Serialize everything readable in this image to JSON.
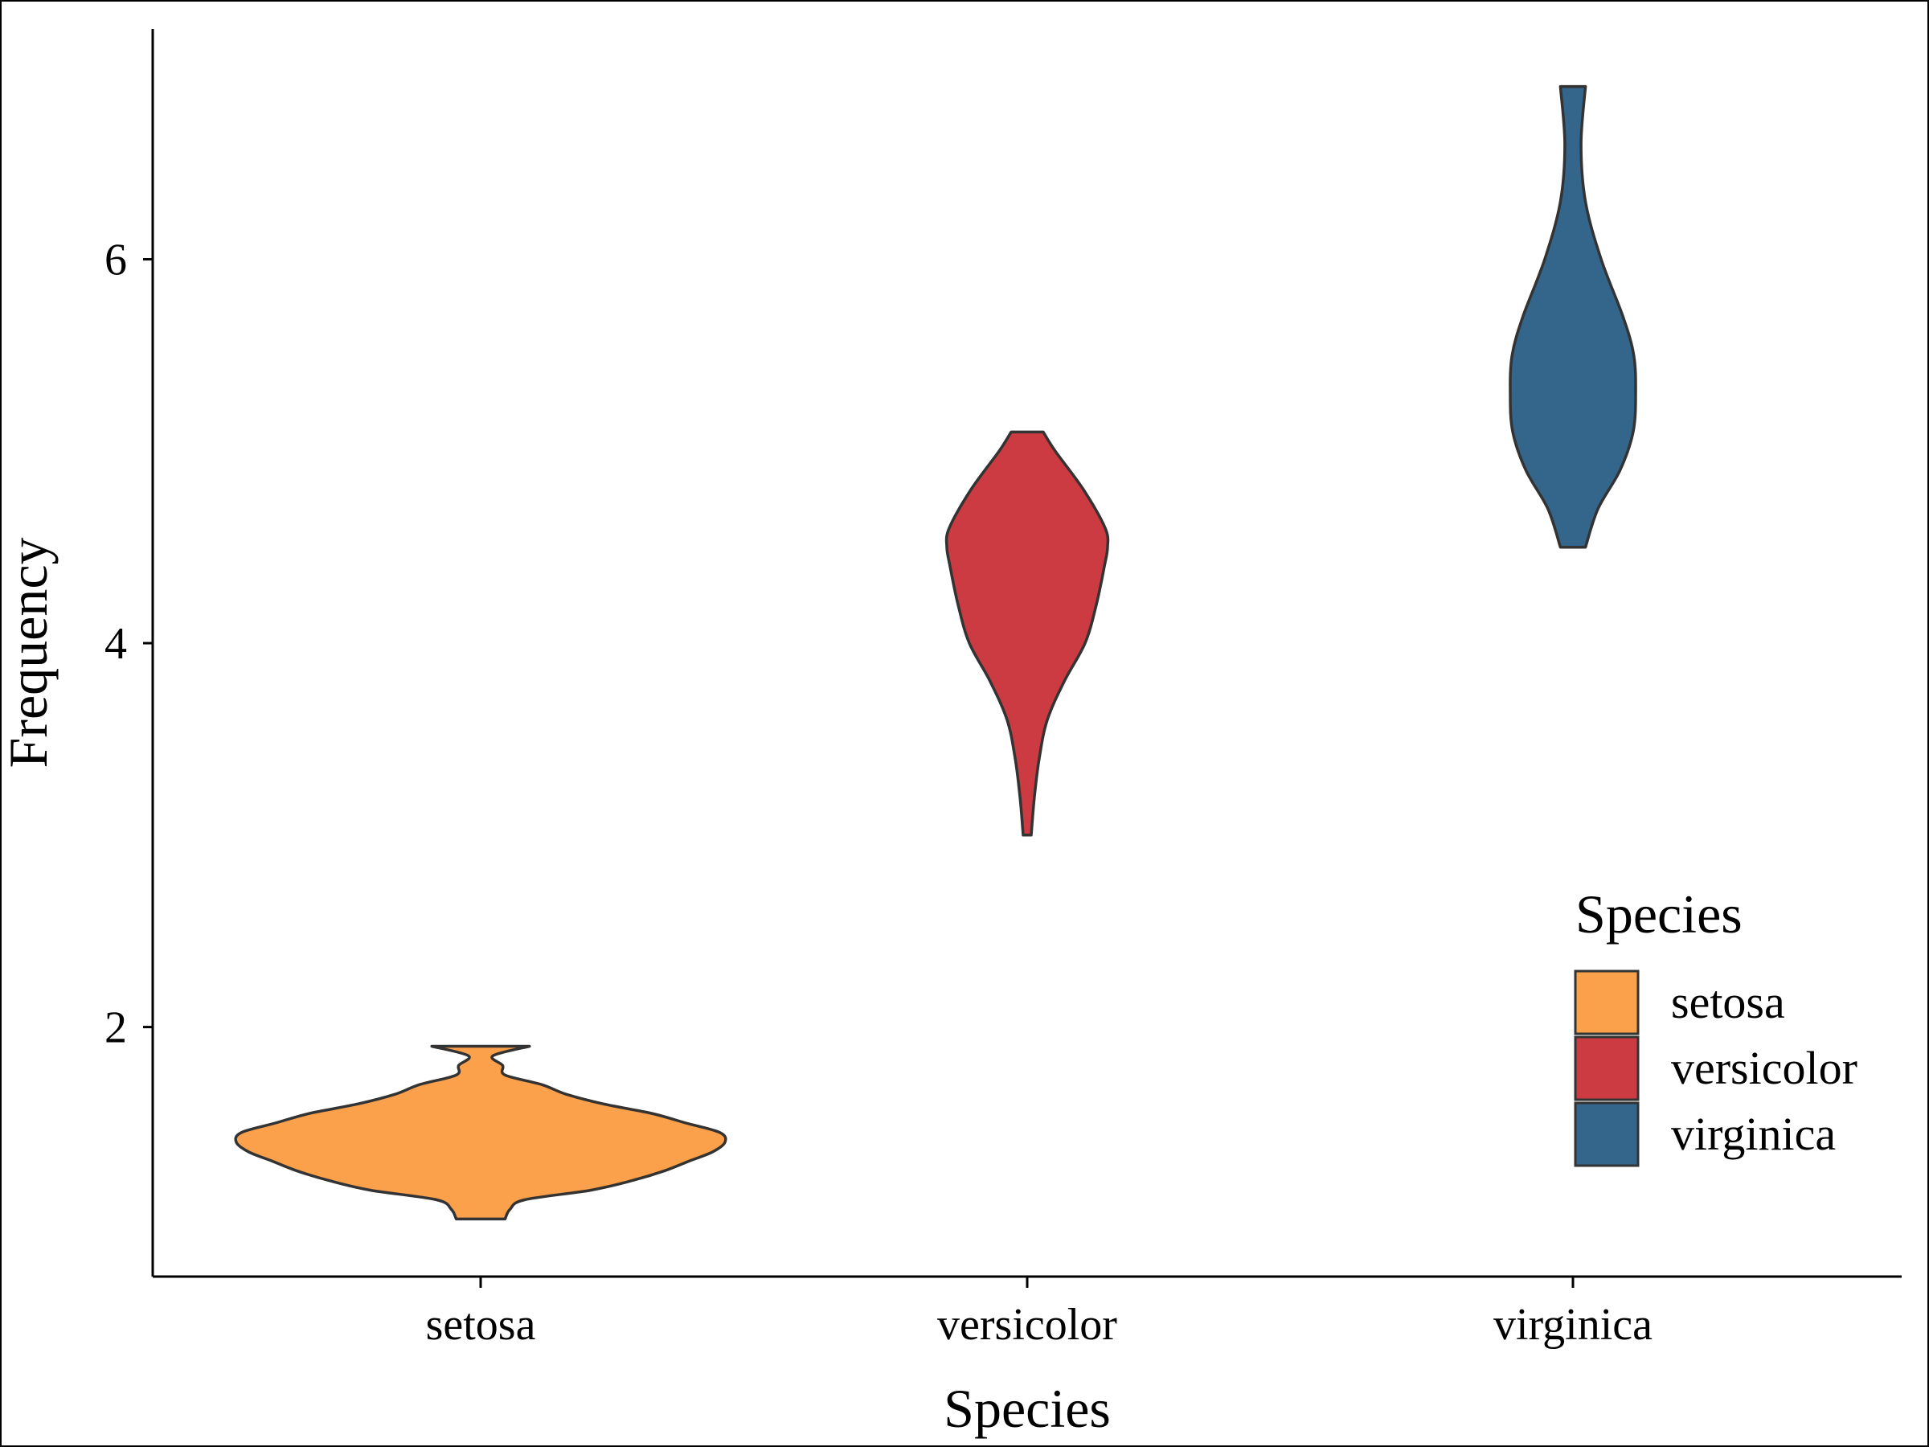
{
  "chart_data": {
    "type": "violin",
    "xlabel": "Species",
    "ylabel": "Frequency",
    "categories": [
      "setosa",
      "versicolor",
      "virginica"
    ],
    "y_ticks": [
      "2",
      "4",
      "6"
    ],
    "ylim": [
      0.7,
      7.2
    ],
    "grid": false,
    "legend": {
      "title": "Species",
      "placement": "bottom-right inside",
      "items": [
        "setosa",
        "versicolor",
        "virginica"
      ]
    },
    "series": [
      {
        "category": "setosa",
        "color": "#FBA04B",
        "min": 1.0,
        "max": 1.9,
        "density": [
          [
            1.0,
            0.1
          ],
          [
            1.05,
            0.12
          ],
          [
            1.1,
            0.18
          ],
          [
            1.15,
            0.45
          ],
          [
            1.2,
            0.62
          ],
          [
            1.25,
            0.75
          ],
          [
            1.3,
            0.85
          ],
          [
            1.35,
            0.95
          ],
          [
            1.4,
            1.0
          ],
          [
            1.45,
            0.98
          ],
          [
            1.5,
            0.84
          ],
          [
            1.55,
            0.7
          ],
          [
            1.6,
            0.5
          ],
          [
            1.65,
            0.35
          ],
          [
            1.7,
            0.25
          ],
          [
            1.75,
            0.1
          ],
          [
            1.8,
            0.09
          ],
          [
            1.85,
            0.05
          ],
          [
            1.9,
            0.2
          ]
        ]
      },
      {
        "category": "versicolor",
        "color": "#CC3A42",
        "min": 3.0,
        "max": 5.1,
        "density": [
          [
            3.0,
            0.05
          ],
          [
            3.2,
            0.09
          ],
          [
            3.4,
            0.15
          ],
          [
            3.6,
            0.25
          ],
          [
            3.8,
            0.46
          ],
          [
            4.0,
            0.72
          ],
          [
            4.2,
            0.86
          ],
          [
            4.4,
            0.96
          ],
          [
            4.5,
            1.0
          ],
          [
            4.6,
            0.97
          ],
          [
            4.8,
            0.7
          ],
          [
            5.0,
            0.35
          ],
          [
            5.1,
            0.2
          ]
        ]
      },
      {
        "category": "virginica",
        "color": "#34658A",
        "min": 4.5,
        "max": 6.9,
        "density": [
          [
            4.5,
            0.2
          ],
          [
            4.7,
            0.4
          ],
          [
            4.9,
            0.75
          ],
          [
            5.1,
            0.96
          ],
          [
            5.3,
            1.0
          ],
          [
            5.5,
            0.97
          ],
          [
            5.7,
            0.8
          ],
          [
            6.0,
            0.45
          ],
          [
            6.3,
            0.2
          ],
          [
            6.6,
            0.13
          ],
          [
            6.9,
            0.2
          ]
        ]
      }
    ]
  }
}
